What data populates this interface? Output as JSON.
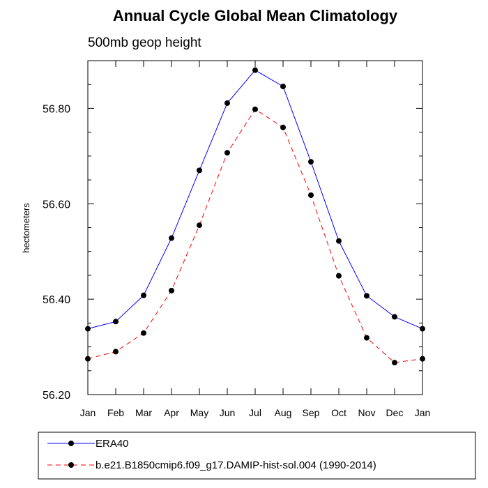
{
  "chart_data": {
    "type": "line",
    "title": "Annual Cycle Global Mean Climatology",
    "subtitle": "500mb geop height",
    "ylabel": "hectometers",
    "xlabel": "",
    "categories": [
      "Jan",
      "Feb",
      "Mar",
      "Apr",
      "May",
      "Jun",
      "Jul",
      "Aug",
      "Sep",
      "Oct",
      "Nov",
      "Dec",
      "Jan"
    ],
    "ylim": [
      56.2,
      56.9
    ],
    "yticks": [
      "56.20",
      "56.40",
      "56.60",
      "56.80"
    ],
    "ytick_values": [
      56.2,
      56.4,
      56.6,
      56.8
    ],
    "series": [
      {
        "name": "ERA40",
        "color": "#0000ff",
        "dash": "solid",
        "values": [
          56.338,
          56.353,
          56.408,
          56.528,
          56.67,
          56.811,
          56.88,
          56.846,
          56.688,
          56.522,
          56.407,
          56.363,
          56.338
        ]
      },
      {
        "name": "b.e21.B1850cmip6.f09_g17.DAMIP-hist-sol.004 (1990-2014)",
        "color": "#ff0000",
        "dash": "dashed",
        "values": [
          56.275,
          56.29,
          56.329,
          56.418,
          56.555,
          56.707,
          56.798,
          56.76,
          56.618,
          56.449,
          56.319,
          56.267,
          56.275
        ]
      }
    ],
    "legend_position": "bottom",
    "grid": false
  }
}
